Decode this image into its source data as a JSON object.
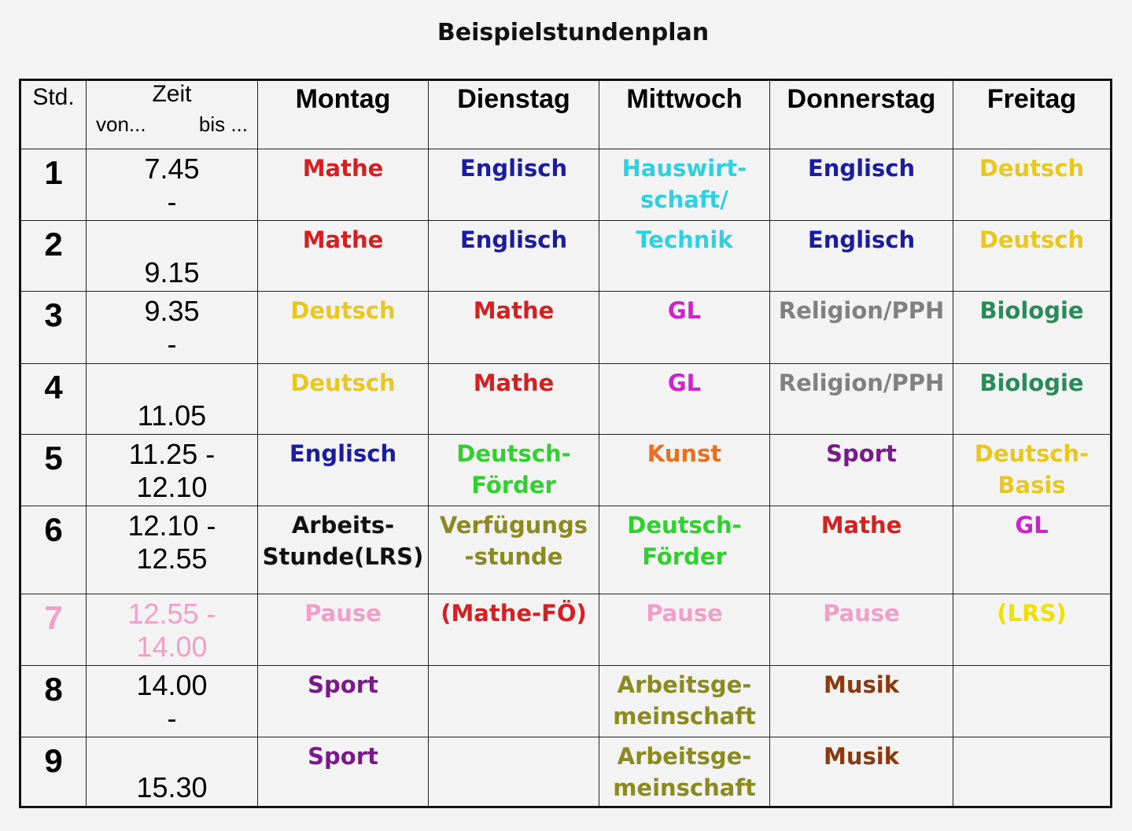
{
  "title": "Beispielstundenplan",
  "header": {
    "std": "Std.",
    "zeit": {
      "label": "Zeit",
      "from": "von...",
      "to": "bis ..."
    },
    "days": [
      "Montag",
      "Dienstag",
      "Mittwoch",
      "Donnerstag",
      "Freitag"
    ]
  },
  "rows": [
    {
      "std": "1",
      "time": {
        "lines": [
          "7.45",
          "-"
        ],
        "align": "top"
      },
      "cells": [
        {
          "lines": [
            "Mathe"
          ],
          "color": "#d42020"
        },
        {
          "lines": [
            "Englisch"
          ],
          "color": "#1c1ca0"
        },
        {
          "lines": [
            "Hauswirt-",
            "schaft/"
          ],
          "color": "#30d0e0"
        },
        {
          "lines": [
            "Englisch"
          ],
          "color": "#1c1ca0"
        },
        {
          "lines": [
            "Deutsch"
          ],
          "color": "#e8c820"
        }
      ]
    },
    {
      "std": "2",
      "time": {
        "lines": [
          "9.15"
        ],
        "align": "bottom"
      },
      "cells": [
        {
          "lines": [
            "Mathe"
          ],
          "color": "#d42020"
        },
        {
          "lines": [
            "Englisch"
          ],
          "color": "#1c1ca0"
        },
        {
          "lines": [
            "Technik"
          ],
          "color": "#30d0e0"
        },
        {
          "lines": [
            "Englisch"
          ],
          "color": "#1c1ca0"
        },
        {
          "lines": [
            "Deutsch"
          ],
          "color": "#e8c820"
        }
      ]
    },
    {
      "std": "3",
      "time": {
        "lines": [
          "9.35",
          "-"
        ],
        "align": "top"
      },
      "cells": [
        {
          "lines": [
            "Deutsch"
          ],
          "color": "#e8c820"
        },
        {
          "lines": [
            "Mathe"
          ],
          "color": "#d42020"
        },
        {
          "lines": [
            "GL"
          ],
          "color": "#d020d0"
        },
        {
          "lines": [
            "Religion/PPH"
          ],
          "color": "#808080"
        },
        {
          "lines": [
            "Biologie"
          ],
          "color": "#2a8a5a"
        }
      ]
    },
    {
      "std": "4",
      "time": {
        "lines": [
          "11.05"
        ],
        "align": "bottom"
      },
      "cells": [
        {
          "lines": [
            "Deutsch"
          ],
          "color": "#e8c820"
        },
        {
          "lines": [
            "Mathe"
          ],
          "color": "#d42020"
        },
        {
          "lines": [
            "GL"
          ],
          "color": "#d020d0"
        },
        {
          "lines": [
            "Religion/PPH"
          ],
          "color": "#808080"
        },
        {
          "lines": [
            "Biologie"
          ],
          "color": "#2a8a5a"
        }
      ]
    },
    {
      "std": "5",
      "time": {
        "lines": [
          "11.25 -",
          "12.10"
        ],
        "align": "top"
      },
      "cells": [
        {
          "lines": [
            "Englisch"
          ],
          "color": "#1c1ca0"
        },
        {
          "lines": [
            "Deutsch-",
            "Förder"
          ],
          "color": "#30d030"
        },
        {
          "lines": [
            "Kunst"
          ],
          "color": "#e87020"
        },
        {
          "lines": [
            "Sport"
          ],
          "color": "#7a1a8a"
        },
        {
          "lines": [
            "Deutsch-",
            "Basis"
          ],
          "color": "#e8c820"
        }
      ]
    },
    {
      "std": "6",
      "time": {
        "lines": [
          "12.10 -",
          "12.55"
        ],
        "align": "top"
      },
      "cells": [
        {
          "lines": [
            "Arbeits-",
            "Stunde(LRS)"
          ],
          "color": "#111111"
        },
        {
          "lines": [
            "Verfügungs",
            "-stunde"
          ],
          "color": "#8a8a20"
        },
        {
          "lines": [
            "Deutsch-",
            "Förder"
          ],
          "color": "#30d030"
        },
        {
          "lines": [
            "Mathe"
          ],
          "color": "#d42020"
        },
        {
          "lines": [
            "GL"
          ],
          "color": "#d020d0"
        }
      ]
    },
    {
      "std": "7",
      "color": "#f0a0c8",
      "time": {
        "lines": [
          "12.55 -",
          "14.00"
        ],
        "align": "top"
      },
      "cells": [
        {
          "lines": [
            "Pause"
          ],
          "color": "#f0a0c8"
        },
        {
          "lines": [
            "(Mathe-FÖ)"
          ],
          "color": "#d42020"
        },
        {
          "lines": [
            "Pause"
          ],
          "color": "#f0a0c8"
        },
        {
          "lines": [
            "Pause"
          ],
          "color": "#f0a0c8"
        },
        {
          "lines": [
            "(LRS)"
          ],
          "color": "#f0e000"
        }
      ]
    },
    {
      "std": "8",
      "time": {
        "lines": [
          "14.00",
          "-"
        ],
        "align": "top"
      },
      "cells": [
        {
          "lines": [
            "Sport"
          ],
          "color": "#7a1a8a"
        },
        null,
        {
          "lines": [
            "Arbeitsge-",
            "meinschaft"
          ],
          "color": "#8a8a20"
        },
        {
          "lines": [
            "Musik"
          ],
          "color": "#8a3a10"
        },
        null
      ]
    },
    {
      "std": "9",
      "time": {
        "lines": [
          "15.30"
        ],
        "align": "bottom"
      },
      "cells": [
        {
          "lines": [
            "Sport"
          ],
          "color": "#7a1a8a"
        },
        null,
        {
          "lines": [
            "Arbeitsge-",
            "meinschaft"
          ],
          "color": "#8a8a20"
        },
        {
          "lines": [
            "Musik"
          ],
          "color": "#8a3a10"
        },
        null
      ]
    }
  ]
}
